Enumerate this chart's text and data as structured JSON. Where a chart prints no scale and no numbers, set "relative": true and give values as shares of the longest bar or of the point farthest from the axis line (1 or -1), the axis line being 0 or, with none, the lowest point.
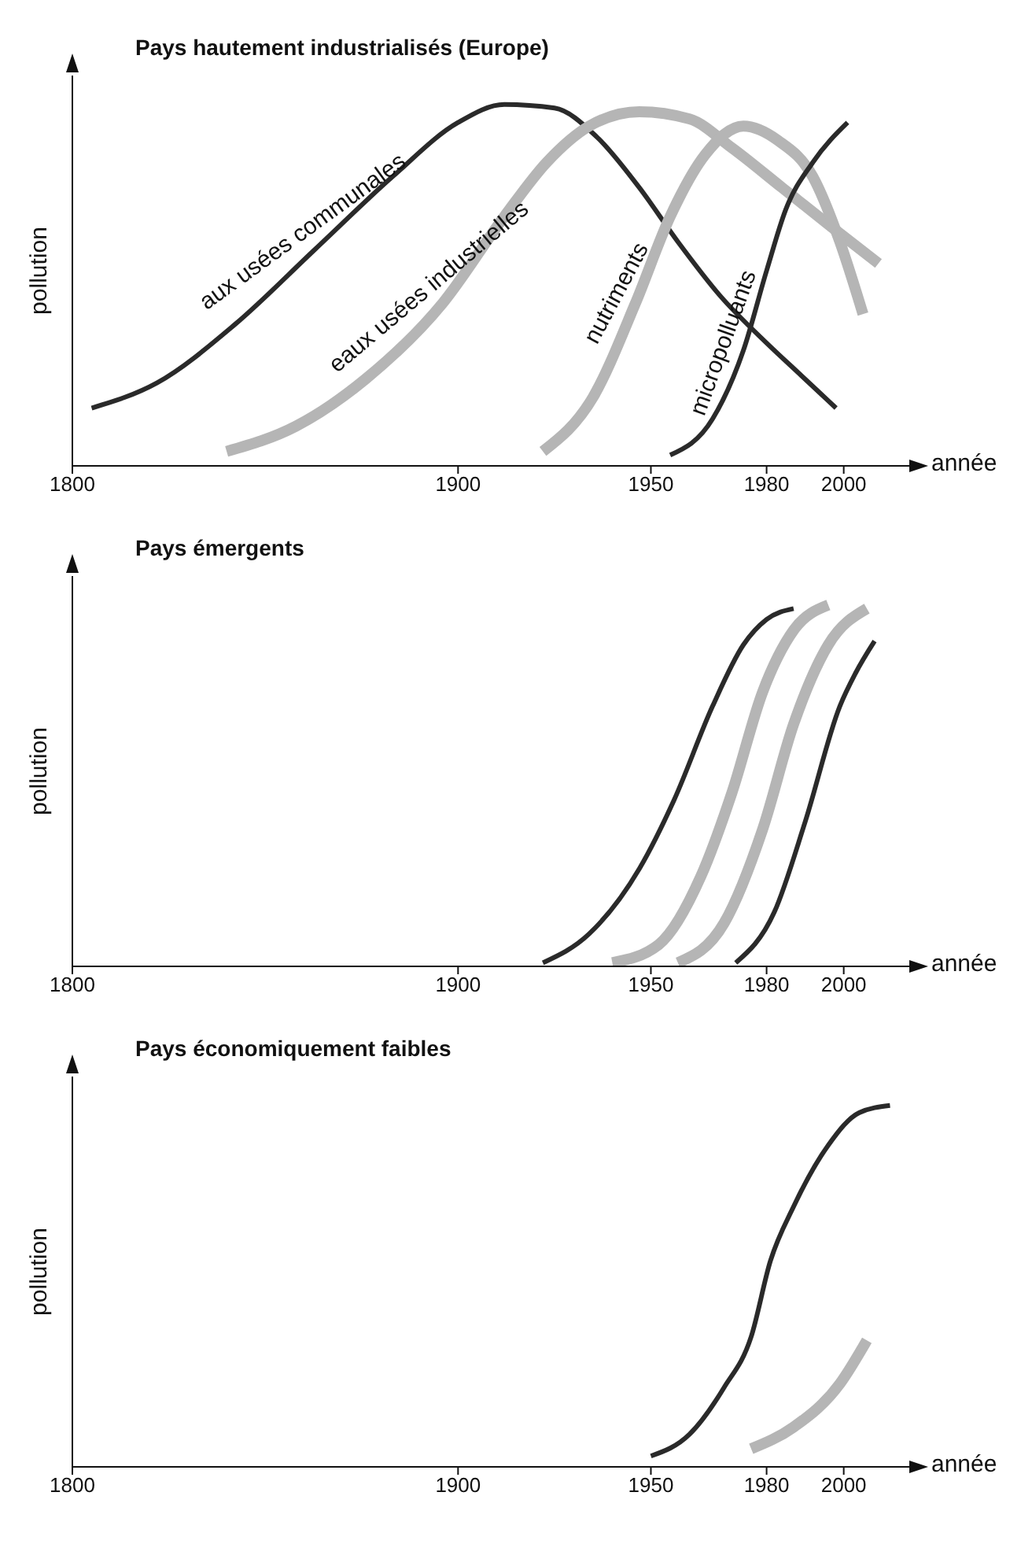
{
  "chart_data": [
    {
      "type": "line",
      "title": "Pays hautement industrialisés (Europe)",
      "xlabel": "année",
      "ylabel": "pollution",
      "relative": true,
      "xlim": [
        1800,
        2017
      ],
      "xticks": [
        1800,
        1900,
        1950,
        1980,
        2000
      ],
      "line_style": "solid",
      "series": [
        {
          "name": "aux usées communales",
          "color": "#2a2a2a",
          "x": [
            1805,
            1822,
            1842,
            1863,
            1883,
            1900,
            1912,
            1925,
            1936,
            1947,
            1957,
            1968,
            1980,
            1989,
            1998
          ],
          "values": [
            0.16,
            0.23,
            0.39,
            0.6,
            0.8,
            0.95,
            1,
            0.99,
            0.91,
            0.77,
            0.62,
            0.47,
            0.34,
            0.25,
            0.16
          ]
        },
        {
          "name": "eaux usées industrielles",
          "color": "#b5b5b5",
          "x": [
            1840,
            1858,
            1876,
            1896,
            1912,
            1923,
            1934,
            1947,
            1960,
            1971,
            1984,
            1997,
            2009
          ],
          "values": [
            0.04,
            0.11,
            0.24,
            0.45,
            0.69,
            0.84,
            0.94,
            0.98,
            0.96,
            0.88,
            0.77,
            0.66,
            0.56
          ]
        },
        {
          "name": "nutriments",
          "color": "#b5b5b5",
          "x": [
            1922,
            1935,
            1946,
            1955,
            1964,
            1974,
            1983,
            1992,
            1999,
            2005
          ],
          "values": [
            0.04,
            0.19,
            0.45,
            0.69,
            0.86,
            0.94,
            0.9,
            0.8,
            0.62,
            0.42
          ]
        },
        {
          "name": "micropolluants",
          "color": "#2a2a2a",
          "x": [
            1955,
            1966,
            1974,
            1980,
            1985,
            1992,
            2001
          ],
          "values": [
            0.03,
            0.13,
            0.32,
            0.54,
            0.71,
            0.84,
            0.95
          ]
        }
      ]
    },
    {
      "type": "line",
      "title": "Pays émergents",
      "xlabel": "année",
      "ylabel": "pollution",
      "relative": true,
      "xlim": [
        1800,
        2017
      ],
      "xticks": [
        1800,
        1900,
        1950,
        1980,
        2000
      ],
      "line_style": "solid",
      "series": [
        {
          "color": "#2a2a2a",
          "x": [
            1922,
            1934,
            1947,
            1956,
            1966,
            1974,
            1980,
            1987
          ],
          "values": [
            0.01,
            0.09,
            0.27,
            0.46,
            0.72,
            0.89,
            0.96,
            0.99
          ]
        },
        {
          "color": "#b5b5b5",
          "x": [
            1940,
            1952,
            1963,
            1971,
            1979,
            1987,
            1996
          ],
          "values": [
            0.01,
            0.06,
            0.25,
            0.48,
            0.76,
            0.93,
            1
          ]
        },
        {
          "color": "#b5b5b5",
          "x": [
            1957,
            1969,
            1979,
            1987,
            1996,
            2006
          ],
          "values": [
            0.01,
            0.12,
            0.38,
            0.67,
            0.89,
            0.99
          ]
        },
        {
          "color": "#2a2a2a",
          "x": [
            1972,
            1982,
            1990,
            1999,
            2003,
            2008
          ],
          "values": [
            0.01,
            0.15,
            0.4,
            0.72,
            0.81,
            0.9
          ]
        }
      ]
    },
    {
      "type": "line",
      "title": "Pays économiquement faibles",
      "xlabel": "année",
      "ylabel": "pollution",
      "relative": true,
      "xlim": [
        1800,
        2017
      ],
      "xticks": [
        1800,
        1900,
        1950,
        1980,
        2000
      ],
      "line_style": "solid",
      "series": [
        {
          "color": "#2a2a2a",
          "x": [
            1950,
            1960,
            1969,
            1976,
            1981,
            1987,
            1996,
            2004,
            2012
          ],
          "values": [
            0.03,
            0.09,
            0.22,
            0.36,
            0.57,
            0.72,
            0.89,
            0.98,
            1
          ]
        },
        {
          "color": "#b5b5b5",
          "x": [
            1976,
            1987,
            1999,
            2006
          ],
          "values": [
            0.05,
            0.11,
            0.23,
            0.35
          ]
        }
      ]
    }
  ]
}
